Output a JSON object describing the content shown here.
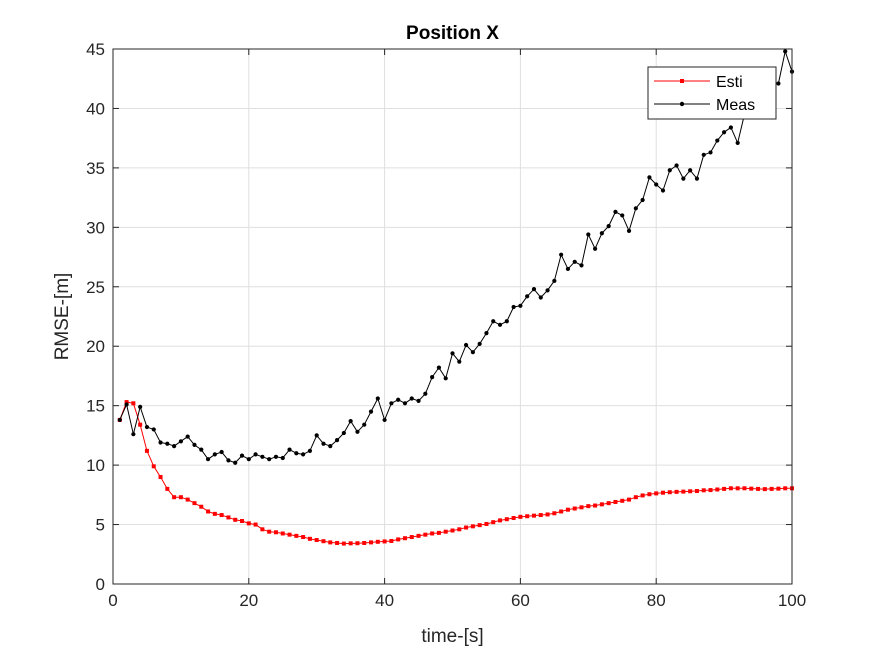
{
  "chart_data": {
    "type": "line",
    "title": "Position X",
    "xlabel": "time-[s]",
    "ylabel": "RMSE-[m]",
    "xlim": [
      0,
      100
    ],
    "ylim": [
      0,
      45
    ],
    "xticks": [
      "0",
      "20",
      "40",
      "60",
      "80",
      "100"
    ],
    "yticks": [
      "0",
      "5",
      "10",
      "15",
      "20",
      "25",
      "30",
      "35",
      "40",
      "45"
    ],
    "grid": true,
    "legend_position": "top-right",
    "series": [
      {
        "name": "Esti",
        "color": "#ff0000",
        "marker": "square",
        "x": [
          1,
          2,
          3,
          4,
          5,
          6,
          7,
          8,
          9,
          10,
          11,
          12,
          13,
          14,
          15,
          16,
          17,
          18,
          19,
          20,
          21,
          22,
          23,
          24,
          25,
          26,
          27,
          28,
          29,
          30,
          31,
          32,
          33,
          34,
          35,
          36,
          37,
          38,
          39,
          40,
          41,
          42,
          43,
          44,
          45,
          46,
          47,
          48,
          49,
          50,
          51,
          52,
          53,
          54,
          55,
          56,
          57,
          58,
          59,
          60,
          61,
          62,
          63,
          64,
          65,
          66,
          67,
          68,
          69,
          70,
          71,
          72,
          73,
          74,
          75,
          76,
          77,
          78,
          79,
          80,
          81,
          82,
          83,
          84,
          85,
          86,
          87,
          88,
          89,
          90,
          91,
          92,
          93,
          94,
          95,
          96,
          97,
          98,
          99,
          100
        ],
        "values": [
          13.8,
          15.3,
          15.2,
          13.4,
          11.2,
          9.9,
          9.0,
          8.0,
          7.3,
          7.3,
          7.1,
          6.8,
          6.5,
          6.1,
          5.9,
          5.8,
          5.6,
          5.4,
          5.3,
          5.1,
          5.0,
          4.6,
          4.4,
          4.35,
          4.25,
          4.15,
          4.05,
          3.95,
          3.8,
          3.7,
          3.6,
          3.5,
          3.45,
          3.4,
          3.42,
          3.43,
          3.45,
          3.5,
          3.55,
          3.58,
          3.62,
          3.75,
          3.85,
          3.95,
          4.05,
          4.15,
          4.25,
          4.3,
          4.4,
          4.5,
          4.6,
          4.75,
          4.85,
          4.95,
          5.05,
          5.2,
          5.35,
          5.45,
          5.55,
          5.65,
          5.7,
          5.75,
          5.8,
          5.85,
          5.95,
          6.1,
          6.25,
          6.35,
          6.45,
          6.55,
          6.6,
          6.7,
          6.8,
          6.9,
          7.0,
          7.1,
          7.3,
          7.45,
          7.55,
          7.62,
          7.68,
          7.72,
          7.75,
          7.77,
          7.8,
          7.82,
          7.88,
          7.9,
          7.95,
          8.0,
          8.05,
          8.05,
          8.05,
          8.02,
          8.0,
          7.98,
          8.0,
          8.02,
          8.05,
          8.05
        ]
      },
      {
        "name": "Meas",
        "color": "#000000",
        "marker": "dot",
        "x": [
          1,
          2,
          3,
          4,
          5,
          6,
          7,
          8,
          9,
          10,
          11,
          12,
          13,
          14,
          15,
          16,
          17,
          18,
          19,
          20,
          21,
          22,
          23,
          24,
          25,
          26,
          27,
          28,
          29,
          30,
          31,
          32,
          33,
          34,
          35,
          36,
          37,
          38,
          39,
          40,
          41,
          42,
          43,
          44,
          45,
          46,
          47,
          48,
          49,
          50,
          51,
          52,
          53,
          54,
          55,
          56,
          57,
          58,
          59,
          60,
          61,
          62,
          63,
          64,
          65,
          66,
          67,
          68,
          69,
          70,
          71,
          72,
          73,
          74,
          75,
          76,
          77,
          78,
          79,
          80,
          81,
          82,
          83,
          84,
          85,
          86,
          87,
          88,
          89,
          90,
          91,
          92,
          93,
          94,
          95,
          96,
          97,
          98,
          99,
          100
        ],
        "values": [
          13.8,
          15.1,
          12.6,
          14.9,
          13.2,
          13.0,
          11.9,
          11.8,
          11.6,
          12.0,
          12.4,
          11.7,
          11.3,
          10.5,
          10.9,
          11.1,
          10.4,
          10.2,
          10.8,
          10.5,
          10.9,
          10.7,
          10.5,
          10.7,
          10.6,
          11.3,
          11.0,
          10.9,
          11.2,
          12.5,
          11.8,
          11.6,
          12.1,
          12.7,
          13.7,
          12.8,
          13.4,
          14.5,
          15.6,
          13.8,
          15.2,
          15.5,
          15.2,
          15.6,
          15.4,
          16.0,
          17.4,
          18.2,
          17.3,
          19.4,
          18.7,
          20.1,
          19.5,
          20.2,
          21.1,
          22.1,
          21.8,
          22.1,
          23.3,
          23.4,
          24.2,
          24.8,
          24.1,
          24.7,
          25.5,
          27.7,
          26.5,
          27.1,
          26.8,
          29.4,
          28.2,
          29.5,
          30.1,
          31.3,
          31.0,
          29.7,
          31.6,
          32.3,
          34.2,
          33.6,
          33.1,
          34.8,
          35.2,
          34.1,
          34.8,
          34.1,
          36.1,
          36.3,
          37.3,
          38.0,
          38.4,
          37.1,
          39.5,
          40.2,
          40.6,
          41.3,
          42.0,
          42.1,
          44.8,
          43.1
        ]
      }
    ]
  }
}
